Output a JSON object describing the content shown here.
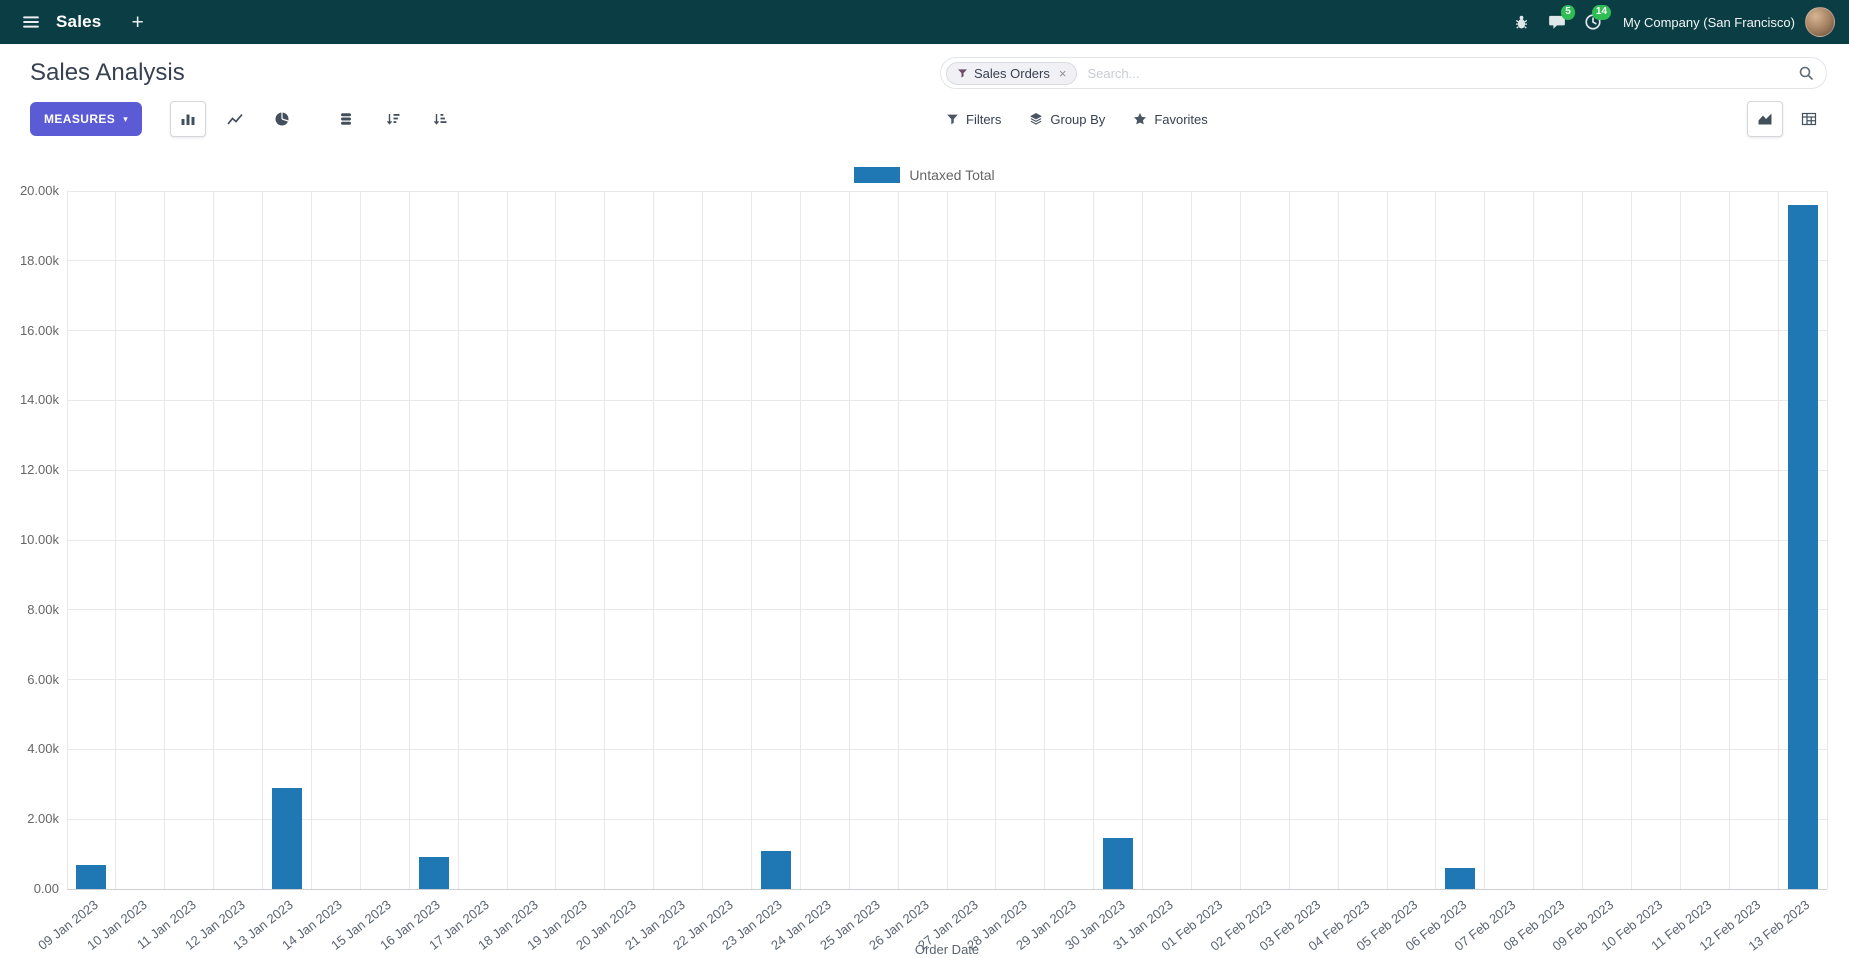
{
  "navbar": {
    "app_title": "Sales",
    "company": "My Company (San Francisco)",
    "messages_badge": "5",
    "activities_badge": "14"
  },
  "control_panel": {
    "title": "Sales Analysis",
    "search": {
      "facet": "Sales Orders",
      "placeholder": "Search..."
    }
  },
  "toolbar": {
    "measures_label": "MEASURES",
    "filters_label": "Filters",
    "group_by_label": "Group By",
    "favorites_label": "Favorites"
  },
  "icons": {
    "plus": "+",
    "caret_down": "▾",
    "facet_remove": "×"
  },
  "colors": {
    "navbar_bg": "#0b3d44",
    "badge_green": "#2fbe54",
    "primary": "#5b5bd6",
    "bar_color": "#1f77b4",
    "grid_color": "#e7e8ea"
  },
  "chart_data": {
    "type": "bar",
    "title": "",
    "xlabel": "Order Date",
    "ylabel": "",
    "ylim": [
      0,
      20000
    ],
    "grid": true,
    "legend_position": "top-center",
    "y_ticks": [
      "0.00",
      "2.00k",
      "4.00k",
      "6.00k",
      "8.00k",
      "10.00k",
      "12.00k",
      "14.00k",
      "16.00k",
      "18.00k",
      "20.00k"
    ],
    "categories": [
      "09 Jan 2023",
      "10 Jan 2023",
      "11 Jan 2023",
      "12 Jan 2023",
      "13 Jan 2023",
      "14 Jan 2023",
      "15 Jan 2023",
      "16 Jan 2023",
      "17 Jan 2023",
      "18 Jan 2023",
      "19 Jan 2023",
      "20 Jan 2023",
      "21 Jan 2023",
      "22 Jan 2023",
      "23 Jan 2023",
      "24 Jan 2023",
      "25 Jan 2023",
      "26 Jan 2023",
      "27 Jan 2023",
      "28 Jan 2023",
      "29 Jan 2023",
      "30 Jan 2023",
      "31 Jan 2023",
      "01 Feb 2023",
      "02 Feb 2023",
      "03 Feb 2023",
      "04 Feb 2023",
      "05 Feb 2023",
      "06 Feb 2023",
      "07 Feb 2023",
      "08 Feb 2023",
      "09 Feb 2023",
      "10 Feb 2023",
      "11 Feb 2023",
      "12 Feb 2023",
      "13 Feb 2023"
    ],
    "series": [
      {
        "name": "Untaxed Total",
        "color": "#1f77b4",
        "values": [
          700,
          0,
          0,
          0,
          2900,
          0,
          0,
          930,
          0,
          0,
          0,
          0,
          0,
          0,
          1100,
          0,
          0,
          0,
          0,
          0,
          0,
          1460,
          0,
          0,
          0,
          0,
          0,
          0,
          610,
          0,
          0,
          0,
          0,
          0,
          0,
          19600
        ]
      }
    ]
  }
}
